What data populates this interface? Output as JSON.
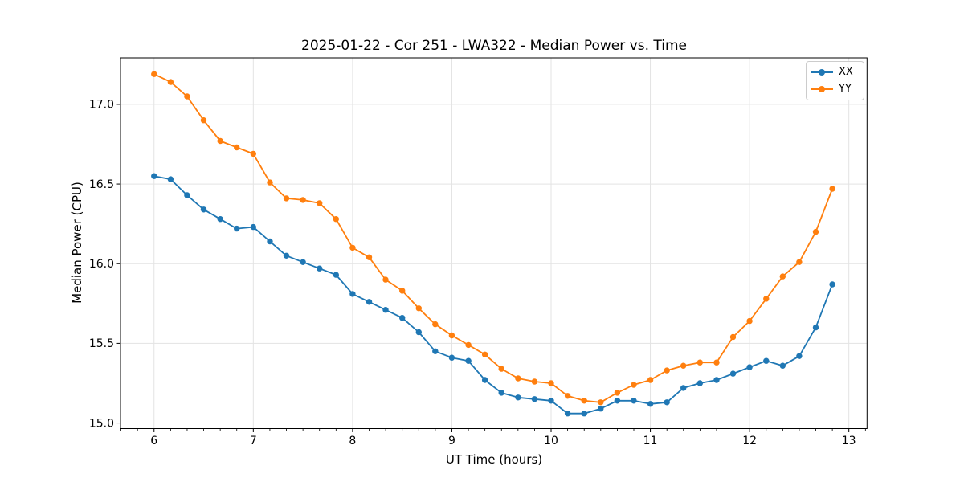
{
  "chart_data": {
    "type": "line",
    "title": "2025-01-22 - Cor 251 - LWA322 - Median Power vs. Time",
    "xlabel": "UT Time (hours)",
    "ylabel": "Median Power (CPU)",
    "grid": true,
    "legend_position": "upper right",
    "xlim": [
      5.662,
      13.183
    ],
    "ylim": [
      14.965,
      17.292
    ],
    "x_ticks": [
      6,
      7,
      8,
      9,
      10,
      11,
      12,
      13
    ],
    "x_tick_labels": [
      "6",
      "7",
      "8",
      "9",
      "10",
      "11",
      "12",
      "13"
    ],
    "x_minor_step": 0.16667,
    "y_ticks": [
      15.0,
      15.5,
      16.0,
      16.5,
      17.0
    ],
    "y_tick_labels": [
      "15.0",
      "15.5",
      "16.0",
      "16.5",
      "17.0"
    ],
    "x": [
      6.0,
      6.167,
      6.333,
      6.5,
      6.667,
      6.833,
      7.0,
      7.167,
      7.333,
      7.5,
      7.667,
      7.833,
      8.0,
      8.167,
      8.333,
      8.5,
      8.667,
      8.833,
      9.0,
      9.167,
      9.333,
      9.5,
      9.667,
      9.833,
      10.0,
      10.167,
      10.333,
      10.5,
      10.667,
      10.833,
      11.0,
      11.167,
      11.333,
      11.5,
      11.667,
      11.833,
      12.0,
      12.167,
      12.333,
      12.5,
      12.667,
      12.833
    ],
    "series": [
      {
        "name": "XX",
        "color": "#1f77b4",
        "marker": "circle",
        "values": [
          16.55,
          16.53,
          16.43,
          16.34,
          16.28,
          16.22,
          16.23,
          16.14,
          16.05,
          16.01,
          15.97,
          15.93,
          15.81,
          15.76,
          15.71,
          15.66,
          15.57,
          15.45,
          15.41,
          15.39,
          15.27,
          15.19,
          15.16,
          15.15,
          15.14,
          15.06,
          15.06,
          15.09,
          15.14,
          15.14,
          15.12,
          15.13,
          15.22,
          15.25,
          15.27,
          15.31,
          15.35,
          15.39,
          15.36,
          15.42,
          15.6,
          15.87
        ]
      },
      {
        "name": "YY",
        "color": "#ff7f0e",
        "marker": "circle",
        "values": [
          17.19,
          17.14,
          17.05,
          16.9,
          16.77,
          16.73,
          16.69,
          16.51,
          16.41,
          16.4,
          16.38,
          16.28,
          16.1,
          16.04,
          15.9,
          15.83,
          15.72,
          15.62,
          15.55,
          15.49,
          15.43,
          15.34,
          15.28,
          15.26,
          15.25,
          15.17,
          15.14,
          15.13,
          15.19,
          15.24,
          15.27,
          15.33,
          15.36,
          15.38,
          15.38,
          15.54,
          15.64,
          15.78,
          15.92,
          16.01,
          16.2,
          16.47
        ]
      }
    ]
  }
}
